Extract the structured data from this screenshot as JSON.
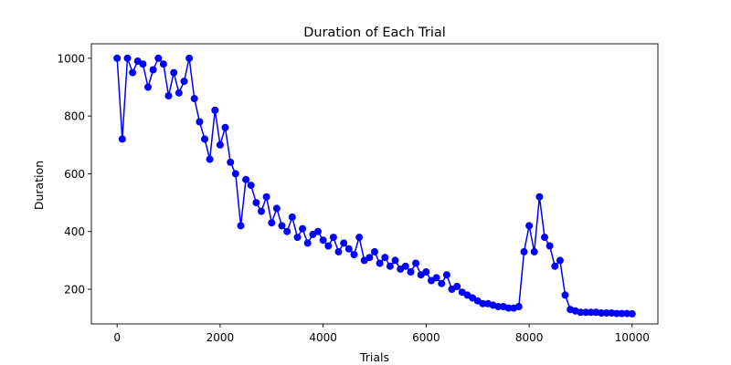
{
  "chart_data": {
    "type": "line",
    "title": "Duration of Each Trial",
    "xlabel": "Trials",
    "ylabel": "Duration",
    "xlim": [
      -500,
      10500
    ],
    "ylim": [
      80,
      1050
    ],
    "x_ticks": [
      0,
      2000,
      4000,
      6000,
      8000,
      10000
    ],
    "y_ticks": [
      200,
      400,
      600,
      800,
      1000
    ],
    "grid": false,
    "legend": "none",
    "series": [
      {
        "color": "#0000ff",
        "marker": "circle",
        "x_start": 0,
        "x_step": 100,
        "values": [
          1000,
          720,
          1000,
          950,
          990,
          980,
          900,
          960,
          1000,
          980,
          870,
          950,
          880,
          920,
          1000,
          860,
          780,
          720,
          650,
          820,
          700,
          760,
          640,
          600,
          420,
          580,
          560,
          500,
          470,
          520,
          430,
          480,
          420,
          400,
          450,
          380,
          410,
          360,
          390,
          400,
          370,
          350,
          380,
          330,
          360,
          340,
          320,
          380,
          300,
          310,
          330,
          290,
          310,
          280,
          300,
          270,
          280,
          260,
          290,
          250,
          260,
          230,
          240,
          220,
          250,
          200,
          210,
          190,
          180,
          170,
          160,
          150,
          150,
          145,
          140,
          140,
          135,
          135,
          140,
          330,
          420,
          330,
          520,
          380,
          350,
          280,
          300,
          180,
          130,
          125,
          120,
          120,
          120,
          120,
          118,
          118,
          118,
          116,
          116,
          116,
          115
        ]
      }
    ]
  }
}
